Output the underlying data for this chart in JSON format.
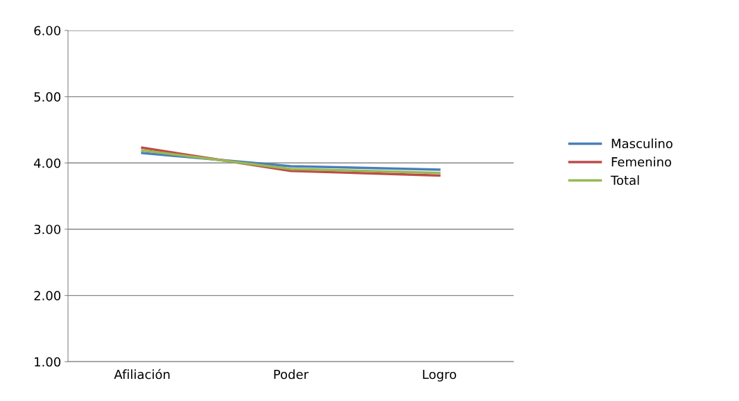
{
  "chart_data": {
    "type": "line",
    "categories": [
      "Afiliación",
      "Poder",
      "Logro"
    ],
    "series": [
      {
        "name": "Masculino",
        "color": "#4a7ebb",
        "values": [
          4.15,
          3.95,
          3.9
        ]
      },
      {
        "name": "Femenino",
        "color": "#be4b48",
        "values": [
          4.23,
          3.88,
          3.81
        ]
      },
      {
        "name": "Total",
        "color": "#98b954",
        "values": [
          4.19,
          3.91,
          3.85
        ]
      }
    ],
    "ylim": [
      1,
      6
    ],
    "yticks": [
      {
        "value": 1,
        "label": "1.00"
      },
      {
        "value": 2,
        "label": "2.00"
      },
      {
        "value": 3,
        "label": "3.00"
      },
      {
        "value": 4,
        "label": "4.00"
      },
      {
        "value": 5,
        "label": "5.00"
      },
      {
        "value": 6,
        "label": "6.00"
      }
    ],
    "grid": "y",
    "legend": "right",
    "marker": "none"
  }
}
